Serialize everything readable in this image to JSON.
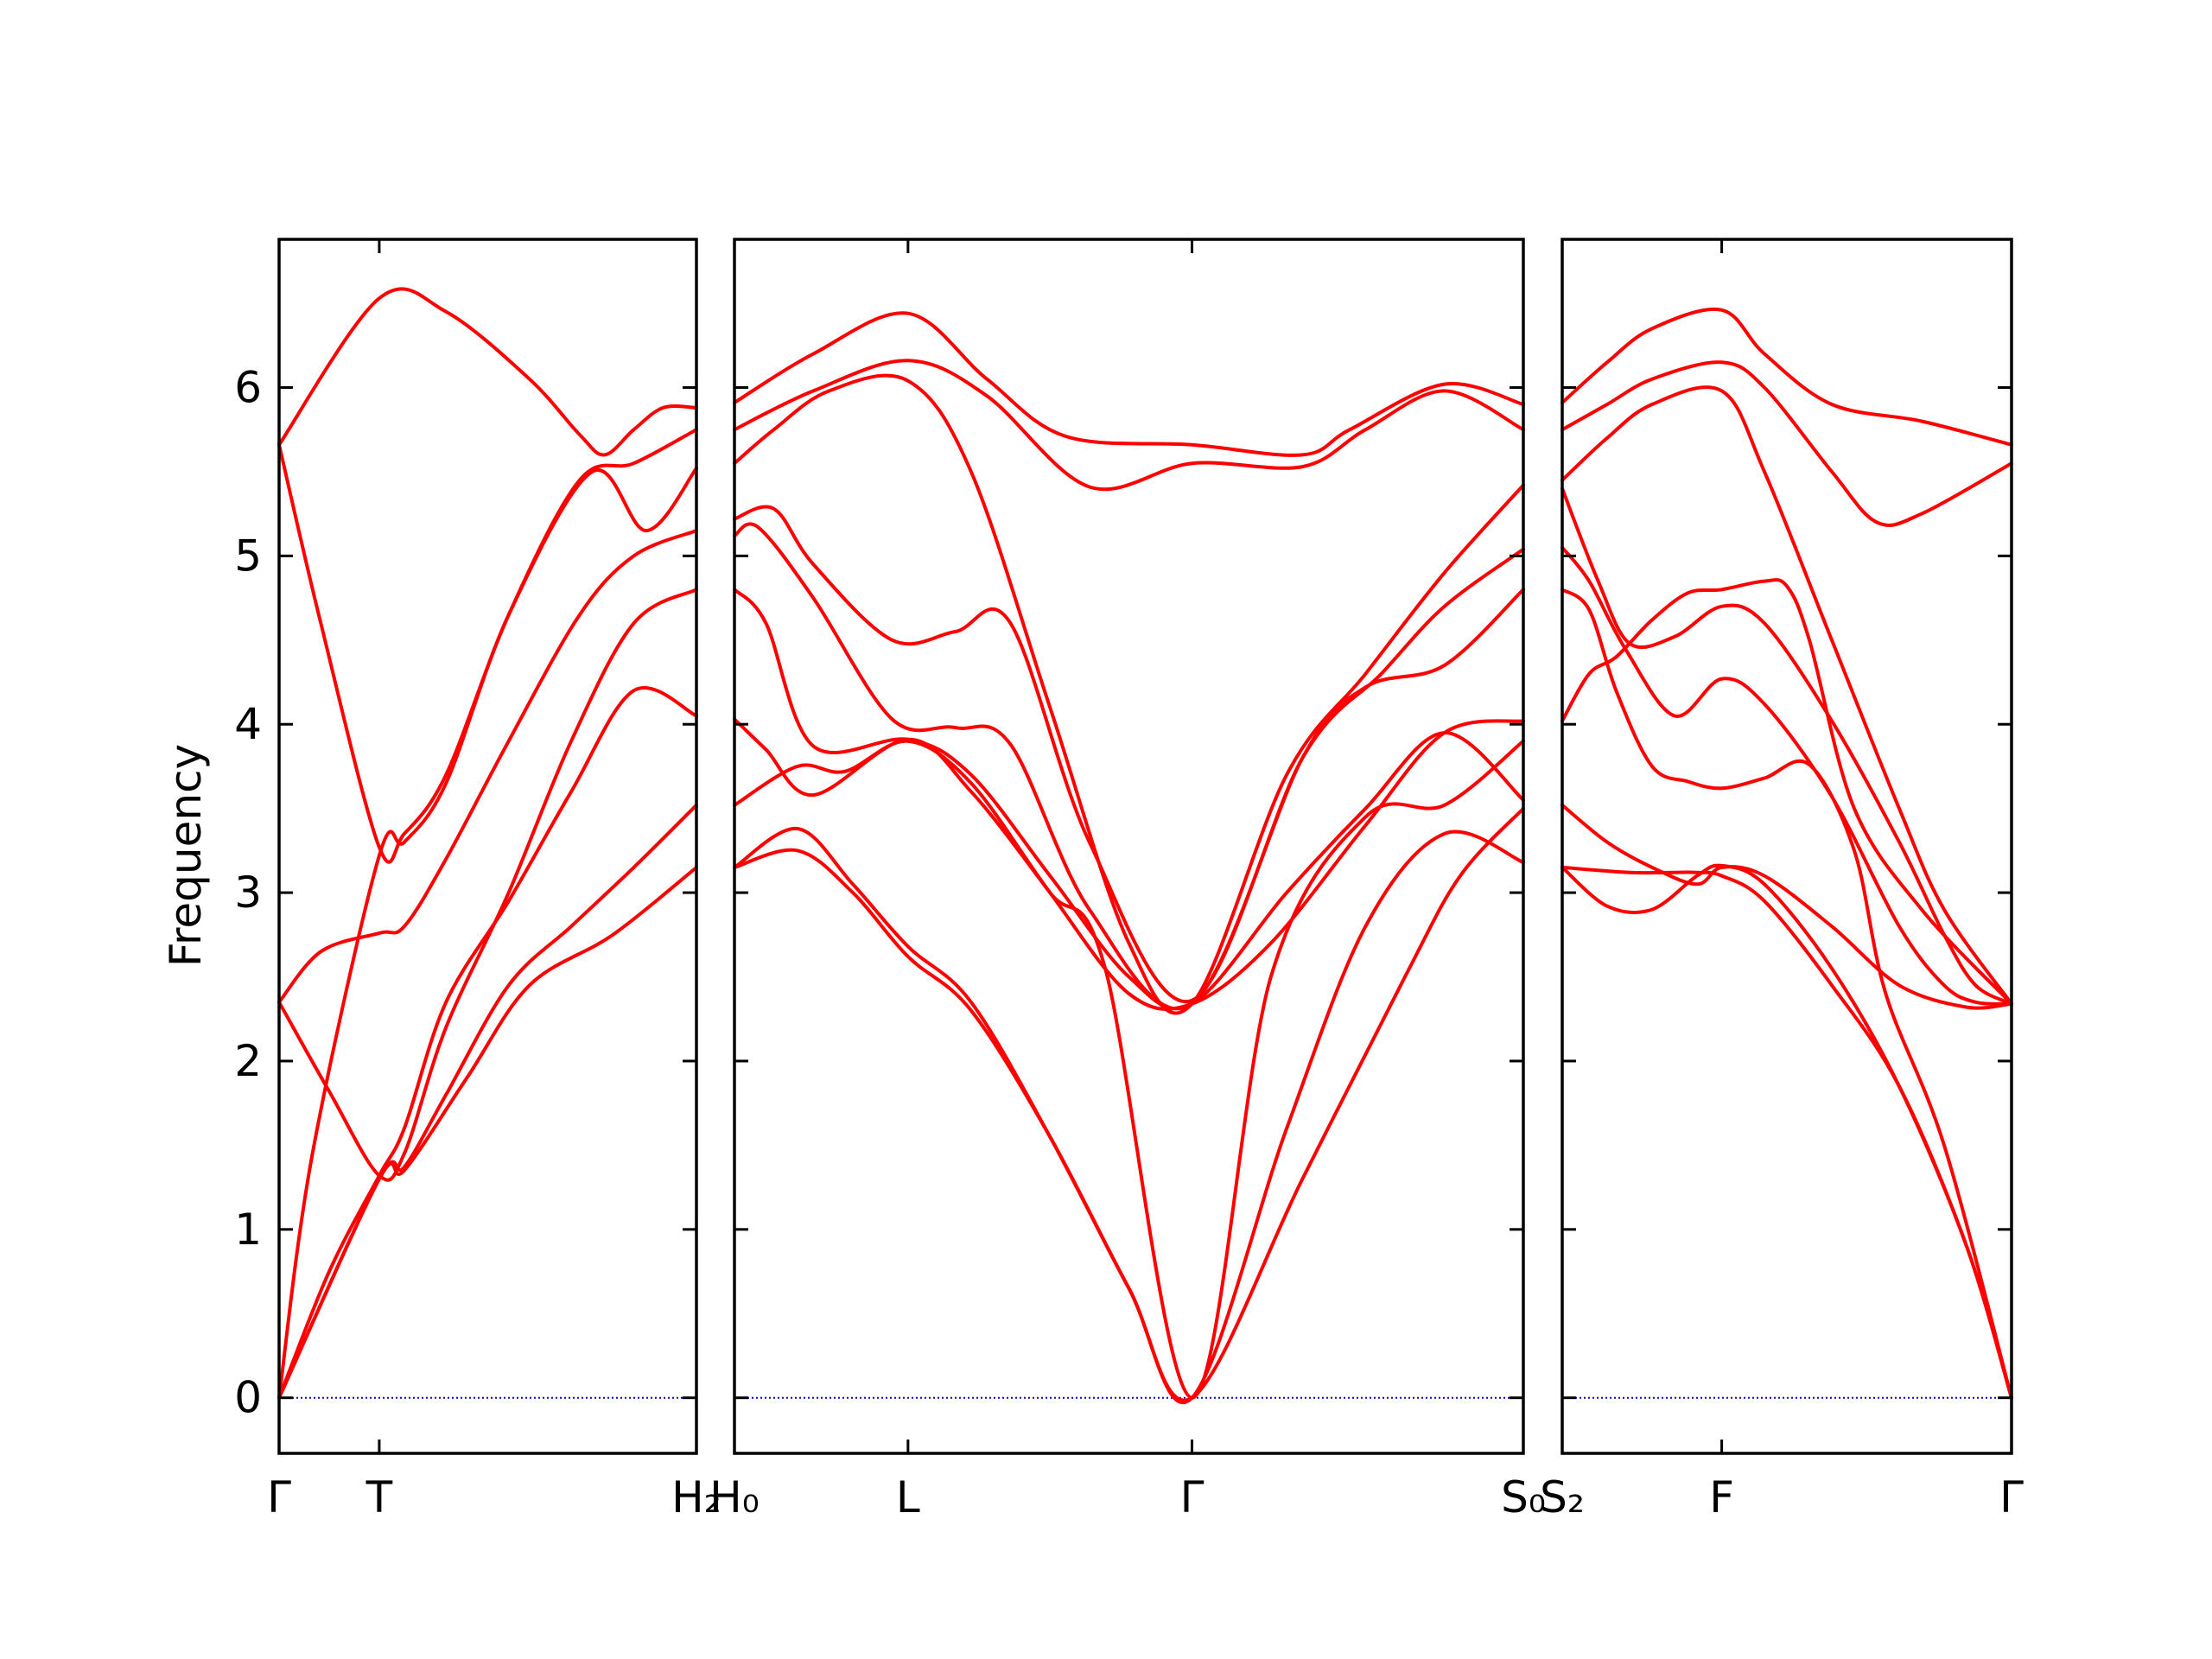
{
  "chart_data": {
    "type": "line",
    "ylabel": "Frequency",
    "ylim": [
      -0.33,
      6.88
    ],
    "yticks": [
      0,
      1,
      2,
      3,
      4,
      5,
      6
    ],
    "yticklabels": [
      "0",
      "1",
      "2",
      "3",
      "4",
      "5",
      "6"
    ],
    "line_color": "#ff0000",
    "zero_line_color": "#0000cc",
    "panels": [
      {
        "xlim": [
          0,
          1
        ],
        "ticks": [
          {
            "x": 0,
            "label": "Γ"
          },
          {
            "x": 0.24,
            "label": "T"
          },
          {
            "x": 1,
            "label": "H₂"
          }
        ],
        "series": [
          {
            "x": [
              0,
              0.24,
              0.4,
              0.6,
              0.72,
              0.78,
              0.85,
              0.92,
              1
            ],
            "y": [
              5.66,
              6.53,
              6.45,
              6.05,
              5.72,
              5.6,
              5.75,
              5.88,
              5.88
            ]
          },
          {
            "x": [
              0,
              0.1,
              0.24,
              0.3,
              0.4,
              0.55,
              0.72,
              0.85,
              1
            ],
            "y": [
              5.66,
              4.6,
              3.27,
              3.35,
              3.7,
              4.65,
              5.45,
              5.55,
              5.75
            ]
          },
          {
            "x": [
              0,
              0.08,
              0.24,
              0.3,
              0.4,
              0.55,
              0.75,
              0.88,
              1
            ],
            "y": [
              0,
              1.45,
              3.22,
              3.3,
              3.65,
              4.65,
              5.5,
              5.15,
              5.52
            ]
          },
          {
            "x": [
              0,
              0.1,
              0.24,
              0.3,
              0.4,
              0.55,
              0.72,
              0.85,
              1
            ],
            "y": [
              2.35,
              2.65,
              2.76,
              2.8,
              3.2,
              3.9,
              4.65,
              5.0,
              5.15
            ]
          },
          {
            "x": [
              0,
              0.12,
              0.24,
              0.3,
              0.4,
              0.55,
              0.7,
              0.85,
              1
            ],
            "y": [
              2.35,
              1.82,
              1.32,
              1.45,
              2.2,
              3.0,
              3.9,
              4.6,
              4.8
            ]
          },
          {
            "x": [
              0,
              0.12,
              0.24,
              0.3,
              0.4,
              0.55,
              0.7,
              0.85,
              1
            ],
            "y": [
              0,
              0.75,
              1.32,
              1.6,
              2.35,
              2.95,
              3.6,
              4.2,
              4.05
            ]
          },
          {
            "x": [
              0,
              0.24,
              0.3,
              0.4,
              0.55,
              0.7,
              0.85,
              1
            ],
            "y": [
              0,
              1.3,
              1.37,
              1.8,
              2.45,
              2.8,
              3.15,
              3.52
            ]
          },
          {
            "x": [
              0,
              0.24,
              0.3,
              0.45,
              0.6,
              0.8,
              1
            ],
            "y": [
              0,
              1.3,
              1.35,
              1.9,
              2.45,
              2.75,
              3.15
            ]
          }
        ]
      },
      {
        "xlim": [
          0,
          1
        ],
        "ticks": [
          {
            "x": 0,
            "label": "H₀"
          },
          {
            "x": 0.22,
            "label": "L"
          },
          {
            "x": 0.58,
            "label": "Γ"
          },
          {
            "x": 1,
            "label": "S₀"
          }
        ],
        "series": [
          {
            "x": [
              0,
              0.1,
              0.22,
              0.32,
              0.42,
              0.58,
              0.72,
              0.78,
              0.9,
              1
            ],
            "y": [
              5.91,
              6.2,
              6.44,
              6.05,
              5.71,
              5.66,
              5.6,
              5.75,
              6.02,
              5.9
            ]
          },
          {
            "x": [
              0,
              0.1,
              0.22,
              0.32,
              0.45,
              0.58,
              0.72,
              0.8,
              0.9,
              1
            ],
            "y": [
              5.75,
              5.98,
              6.16,
              5.95,
              5.41,
              5.55,
              5.53,
              5.75,
              5.98,
              5.75
            ]
          },
          {
            "x": [
              0,
              0.05,
              0.12,
              0.22,
              0.3,
              0.4,
              0.5,
              0.58,
              0.7,
              0.8,
              0.9,
              1
            ],
            "y": [
              5.55,
              5.75,
              5.98,
              6.04,
              5.5,
              4.1,
              2.7,
              2.34,
              3.7,
              4.3,
              4.9,
              5.42
            ]
          },
          {
            "x": [
              0,
              0.05,
              0.1,
              0.2,
              0.28,
              0.35,
              0.45,
              0.58,
              0.72,
              0.82,
              0.9,
              1
            ],
            "y": [
              5.22,
              5.28,
              4.95,
              4.5,
              4.55,
              4.6,
              3.3,
              2.36,
              3.8,
              4.3,
              4.7,
              5.04
            ]
          },
          {
            "x": [
              0,
              0.03,
              0.1,
              0.2,
              0.28,
              0.35,
              0.45,
              0.58,
              0.72,
              0.8,
              0.9,
              1
            ],
            "y": [
              5.12,
              5.17,
              4.75,
              4.03,
              3.98,
              3.88,
              2.9,
              2.34,
              3.8,
              4.22,
              4.35,
              4.8
            ]
          },
          {
            "x": [
              0,
              0.04,
              0.1,
              0.22,
              0.3,
              0.4,
              0.5,
              0.58,
              0.7,
              0.8,
              0.9,
              1
            ],
            "y": [
              4.8,
              4.6,
              3.87,
              3.91,
              3.7,
              3.1,
              2.5,
              2.34,
              3.0,
              3.5,
              3.95,
              3.55
            ]
          },
          {
            "x": [
              0,
              0.08,
              0.14,
              0.22,
              0.3,
              0.4,
              0.5,
              0.58,
              0.68,
              0.8,
              0.9,
              1
            ],
            "y": [
              3.52,
              3.75,
              3.72,
              3.9,
              3.65,
              3.0,
              2.4,
              2.34,
              2.7,
              3.4,
              3.95,
              4.02
            ]
          },
          {
            "x": [
              0,
              0.04,
              0.1,
              0.22,
              0.3,
              0.4,
              0.47,
              0.58,
              0.68,
              0.8,
              0.9,
              1
            ],
            "y": [
              4.03,
              3.85,
              3.58,
              3.91,
              3.6,
              3.0,
              2.55,
              0,
              2.5,
              3.45,
              3.52,
              3.9
            ]
          },
          {
            "x": [
              0,
              0.08,
              0.15,
              0.22,
              0.3,
              0.4,
              0.5,
              0.58,
              0.7,
              0.8,
              0.9,
              1
            ],
            "y": [
              3.15,
              3.38,
              3.05,
              2.68,
              2.35,
              1.55,
              0.65,
              0,
              1.6,
              2.8,
              3.35,
              3.18
            ]
          },
          {
            "x": [
              0,
              0.08,
              0.15,
              0.22,
              0.3,
              0.4,
              0.5,
              0.58,
              0.72,
              0.85,
              0.92,
              1
            ],
            "y": [
              3.15,
              3.25,
              3.0,
              2.62,
              2.3,
              1.55,
              0.65,
              0,
              1.3,
              2.5,
              3.1,
              3.5
            ]
          }
        ]
      },
      {
        "xlim": [
          0,
          1
        ],
        "ticks": [
          {
            "x": 0,
            "label": "S₂"
          },
          {
            "x": 0.355,
            "label": "F"
          },
          {
            "x": 1,
            "label": "Γ"
          }
        ],
        "series": [
          {
            "x": [
              0,
              0.1,
              0.2,
              0.355,
              0.45,
              0.6,
              0.8,
              1
            ],
            "y": [
              5.91,
              6.15,
              6.35,
              6.46,
              6.2,
              5.9,
              5.8,
              5.66
            ]
          },
          {
            "x": [
              0,
              0.1,
              0.2,
              0.355,
              0.45,
              0.6,
              0.7,
              0.8,
              1
            ],
            "y": [
              5.75,
              5.9,
              6.05,
              6.15,
              6.0,
              5.5,
              5.2,
              5.25,
              5.55
            ]
          },
          {
            "x": [
              0,
              0.1,
              0.2,
              0.355,
              0.45,
              0.6,
              0.75,
              0.85,
              1
            ],
            "y": [
              5.45,
              5.7,
              5.9,
              5.98,
              5.5,
              4.5,
              3.5,
              2.9,
              2.34
            ]
          },
          {
            "x": [
              0,
              0.08,
              0.15,
              0.25,
              0.355,
              0.45,
              0.6,
              0.75,
              0.85,
              0.92,
              1
            ],
            "y": [
              5.4,
              4.85,
              4.48,
              4.52,
              4.7,
              4.6,
              4.02,
              3.3,
              2.75,
              2.45,
              2.34
            ]
          },
          {
            "x": [
              0,
              0.06,
              0.14,
              0.25,
              0.355,
              0.45,
              0.6,
              0.75,
              0.85,
              0.92,
              1
            ],
            "y": [
              5.05,
              4.85,
              4.45,
              4.05,
              4.27,
              4.12,
              3.57,
              2.8,
              2.45,
              2.35,
              2.34
            ]
          },
          {
            "x": [
              0,
              0.06,
              0.12,
              0.2,
              0.28,
              0.355,
              0.45,
              0.55,
              0.65,
              0.72,
              0.85,
              1
            ],
            "y": [
              4.8,
              4.68,
              4.2,
              3.75,
              3.66,
              3.62,
              3.68,
              3.76,
              3.25,
              2.4,
              1.5,
              0
            ]
          },
          {
            "x": [
              0,
              0.06,
              0.12,
              0.2,
              0.28,
              0.355,
              0.45,
              0.5,
              0.55,
              0.65,
              0.8,
              1
            ],
            "y": [
              4.02,
              4.3,
              4.4,
              4.62,
              4.78,
              4.8,
              4.85,
              4.82,
              4.5,
              3.5,
              2.9,
              2.34
            ]
          },
          {
            "x": [
              0,
              0.1,
              0.2,
              0.3,
              0.355,
              0.45,
              0.6,
              0.75,
              0.9,
              1
            ],
            "y": [
              3.52,
              3.3,
              3.15,
              3.05,
              3.15,
              3.1,
              2.8,
              2.45,
              2.32,
              2.34
            ]
          },
          {
            "x": [
              0,
              0.1,
              0.2,
              0.3,
              0.355,
              0.45,
              0.6,
              0.75,
              0.9,
              1
            ],
            "y": [
              3.15,
              2.92,
              2.9,
              3.1,
              3.16,
              3.05,
              2.55,
              1.85,
              0.9,
              0
            ]
          },
          {
            "x": [
              0,
              0.15,
              0.25,
              0.3,
              0.355,
              0.45,
              0.6,
              0.75,
              0.9,
              1
            ],
            "y": [
              3.15,
              3.12,
              3.12,
              3.12,
              3.1,
              2.95,
              2.45,
              1.85,
              0.9,
              0
            ]
          }
        ]
      }
    ]
  }
}
